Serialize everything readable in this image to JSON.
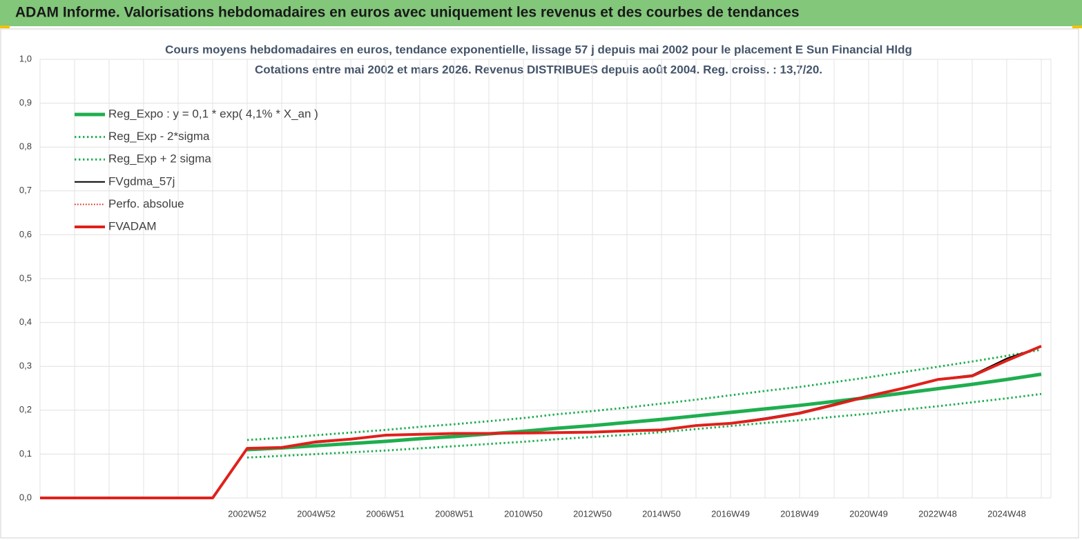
{
  "header": {
    "title": "ADAM Informe. Valorisations hebdomadaires en euros avec uniquement les revenus et des courbes de tendances"
  },
  "chart_data": {
    "type": "line",
    "title": "Cours moyens hebdomadaires en euros, tendance exponentielle, lissage 57 j depuis mai 2002 pour le placement E Sun Financial Hldg",
    "subtitle": "Cotations entre mai 2002 et mars 2026. Revenus DISTRIBUES depuis août 2004. Reg. croiss. : 13,7/20.",
    "categories": [
      null,
      null,
      null,
      null,
      null,
      null,
      "2002W52",
      null,
      "2004W52",
      null,
      "2006W51",
      null,
      "2008W51",
      null,
      "2010W50",
      null,
      "2012W50",
      null,
      "2014W50",
      null,
      "2016W49",
      null,
      "2018W49",
      null,
      "2020W49",
      null,
      "2022W48",
      null,
      "2024W48",
      null
    ],
    "ylim": [
      0,
      1
    ],
    "yticks": [
      {
        "value": 0,
        "label": "0,0"
      },
      {
        "value": 0.1,
        "label": "0,1"
      },
      {
        "value": 0.2,
        "label": "0,2"
      },
      {
        "value": 0.3,
        "label": "0,3"
      },
      {
        "value": 0.4,
        "label": "0,4"
      },
      {
        "value": 0.5,
        "label": "0,5"
      },
      {
        "value": 0.6,
        "label": "0,6"
      },
      {
        "value": 0.7,
        "label": "0,7"
      },
      {
        "value": 0.8,
        "label": "0,8"
      },
      {
        "value": 0.9,
        "label": "0,9"
      },
      {
        "value": 1,
        "label": "1,0"
      }
    ],
    "grid": true,
    "series": [
      {
        "name": "Reg_Expo : y = 0,1 * exp( 4,1% *  X_an )",
        "color": "#1fae4f",
        "width": 5,
        "dash": "solid",
        "values": [
          null,
          null,
          null,
          null,
          null,
          null,
          0.11,
          0.114,
          0.119,
          0.124,
          0.129,
          0.135,
          0.14,
          0.146,
          0.152,
          0.159,
          0.165,
          0.172,
          0.179,
          0.187,
          0.195,
          0.203,
          0.211,
          0.22,
          0.229,
          0.239,
          0.249,
          0.259,
          0.27,
          0.282
        ]
      },
      {
        "name": "Reg_Exp - 2*sigma",
        "color": "#1fae4f",
        "width": 3,
        "dash": "dotted",
        "values": [
          null,
          null,
          null,
          null,
          null,
          null,
          0.092,
          0.096,
          0.1,
          0.104,
          0.108,
          0.113,
          0.118,
          0.123,
          0.128,
          0.134,
          0.139,
          0.144,
          0.15,
          0.157,
          0.164,
          0.171,
          0.177,
          0.185,
          0.192,
          0.201,
          0.209,
          0.218,
          0.227,
          0.237
        ]
      },
      {
        "name": "Reg_Exp + 2 sigma",
        "color": "#1fae4f",
        "width": 3,
        "dash": "dotted",
        "values": [
          null,
          null,
          null,
          null,
          null,
          null,
          0.132,
          0.137,
          0.143,
          0.149,
          0.155,
          0.162,
          0.168,
          0.175,
          0.182,
          0.191,
          0.198,
          0.206,
          0.215,
          0.224,
          0.234,
          0.244,
          0.253,
          0.264,
          0.275,
          0.287,
          0.299,
          0.311,
          0.324,
          0.338
        ]
      },
      {
        "name": "FVgdma_57j",
        "color": "#000000",
        "width": 2,
        "dash": "solid",
        "values": [
          0,
          0,
          0,
          0,
          0,
          0,
          0.114,
          0.116,
          0.126,
          0.133,
          0.142,
          0.145,
          0.147,
          0.147,
          0.148,
          0.149,
          0.15,
          0.153,
          0.156,
          0.166,
          0.171,
          0.182,
          0.195,
          0.214,
          0.234,
          0.251,
          0.271,
          0.28,
          0.318,
          0.345
        ]
      },
      {
        "name": "Perfo. absolue",
        "color": "#e0201b",
        "width": 2,
        "dash": "dotted",
        "values": [
          0,
          0,
          0,
          0,
          0,
          0,
          0.113,
          0.115,
          0.128,
          0.134,
          0.143,
          0.145,
          0.147,
          0.147,
          0.148,
          0.149,
          0.15,
          0.153,
          0.155,
          0.165,
          0.17,
          0.18,
          0.193,
          0.212,
          0.232,
          0.25,
          0.27,
          0.278,
          0.313,
          0.346
        ]
      },
      {
        "name": "FVADAM",
        "color": "#e0201b",
        "width": 4,
        "dash": "solid",
        "values": [
          0,
          0,
          0,
          0,
          0,
          0,
          0.113,
          0.115,
          0.128,
          0.134,
          0.143,
          0.145,
          0.147,
          0.147,
          0.148,
          0.149,
          0.15,
          0.153,
          0.155,
          0.165,
          0.17,
          0.18,
          0.193,
          0.212,
          0.232,
          0.25,
          0.27,
          0.278,
          0.313,
          0.346
        ]
      }
    ]
  }
}
